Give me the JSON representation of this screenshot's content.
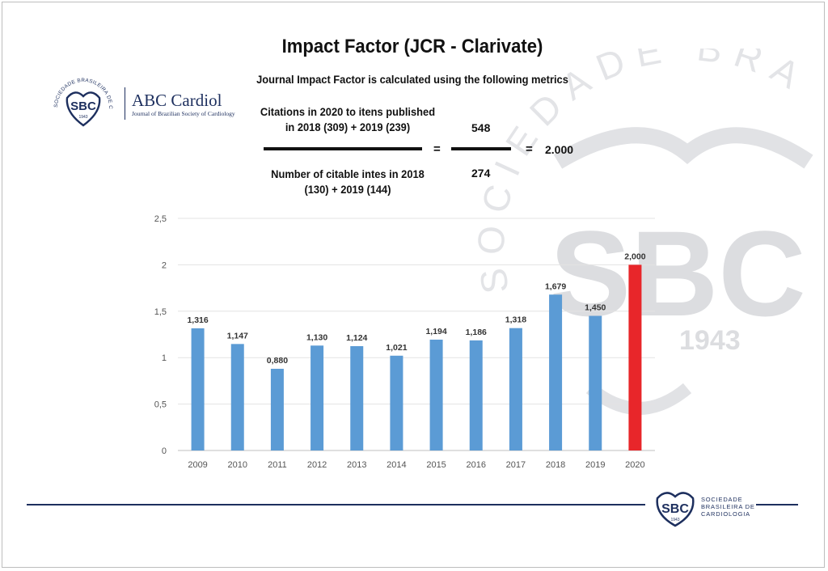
{
  "header": {
    "title": "Impact Factor (JCR - Clarivate)",
    "subtitle": "Journal Impact Factor is calculated using the following metrics"
  },
  "formula": {
    "numerator_label_line1": "Citations in 2020 to itens published",
    "numerator_label_line2": "in 2018 (309) + 2019 (239)",
    "denominator_label_line1": "Number of citable intes in 2018",
    "denominator_label_line2": "(130) + 2019 (144)",
    "equals_sign": "=",
    "numerator_value": "548",
    "denominator_value": "274",
    "result_equals": "=",
    "result": "2.000"
  },
  "logos": {
    "abc_name": "ABC Cardiol",
    "abc_subtitle": "Journal of Brazilian Society of Cardiology",
    "sbc_short": "SBC",
    "sbc_year": "1943",
    "sbc_ring_text": "SOCIEDADE BRASILEIRA DE CARDIOLOGIA",
    "footer_line1": "SOCIEDADE",
    "footer_line2": "BRASILEIRA DE",
    "footer_line3": "CARDIOLOGIA",
    "watermark_text": "SOCIEDADE BRASILEIRA DE CARDIOLOGIA"
  },
  "colors": {
    "bar": "#5b9bd5",
    "highlight_bar": "#e8262a",
    "brand_navy": "#1d2f5e",
    "watermark": "#d9dadd"
  },
  "chart_data": {
    "type": "bar",
    "categories": [
      "2009",
      "2010",
      "2011",
      "2012",
      "2013",
      "2014",
      "2015",
      "2016",
      "2017",
      "2018",
      "2019",
      "2020"
    ],
    "values": [
      1.316,
      1.147,
      0.88,
      1.13,
      1.124,
      1.021,
      1.194,
      1.186,
      1.318,
      1.679,
      1.45,
      2.0
    ],
    "data_labels": [
      "1,316",
      "1,147",
      "0,880",
      "1,130",
      "1,124",
      "1,021",
      "1,194",
      "1,186",
      "1,318",
      "1,679",
      "1,450",
      "2,000"
    ],
    "highlight_category": "2020",
    "ylim": [
      0,
      2.5
    ],
    "yticks": [
      0,
      0.5,
      1,
      1.5,
      2,
      2.5
    ],
    "ytick_labels": [
      "0",
      "0,5",
      "1",
      "1,5",
      "2",
      "2,5"
    ],
    "grid": true,
    "title": "",
    "xlabel": "",
    "ylabel": ""
  }
}
